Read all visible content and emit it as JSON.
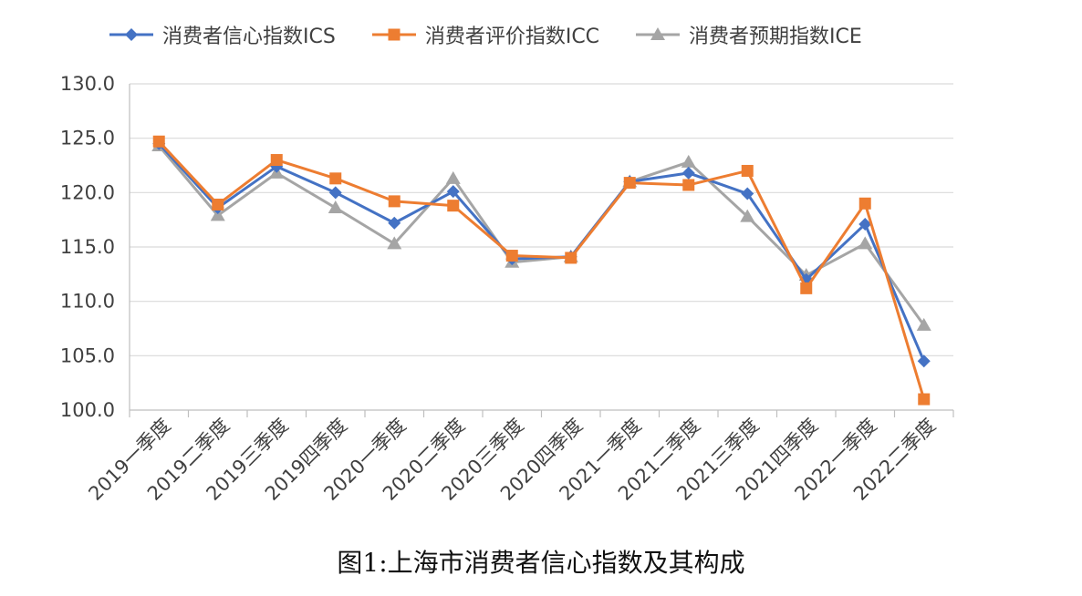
{
  "caption": "图1:上海市消费者信心指数及其构成",
  "chart_data": {
    "type": "line",
    "categories": [
      "2019一季度",
      "2019二季度",
      "2019三季度",
      "2019四季度",
      "2020一季度",
      "2020二季度",
      "2020三季度",
      "2020四季度",
      "2021一季度",
      "2021二季度",
      "2021三季度",
      "2021四季度",
      "2022一季度",
      "2022二季度"
    ],
    "ylim": [
      100,
      130
    ],
    "yticks": [
      "100.0",
      "105.0",
      "110.0",
      "115.0",
      "120.0",
      "125.0",
      "130.0"
    ],
    "grid": true,
    "legend_position": "top",
    "series": [
      {
        "name": "消费者信心指数ICS",
        "color": "#4472C4",
        "marker": "diamond",
        "values": [
          124.5,
          118.6,
          122.4,
          120.0,
          117.2,
          120.1,
          113.9,
          114.1,
          121.0,
          121.8,
          119.9,
          112.0,
          117.1,
          104.5
        ]
      },
      {
        "name": "消费者评价指数ICC",
        "color": "#ED7D31",
        "marker": "square",
        "values": [
          124.7,
          118.9,
          123.0,
          121.3,
          119.2,
          118.8,
          114.2,
          114.0,
          120.9,
          120.7,
          122.0,
          111.2,
          119.0,
          101.0
        ]
      },
      {
        "name": "消费者预期指数ICE",
        "color": "#A5A5A5",
        "marker": "triangle",
        "values": [
          124.3,
          117.9,
          121.8,
          118.6,
          115.3,
          121.3,
          113.6,
          114.1,
          121.0,
          122.8,
          117.8,
          112.4,
          115.3,
          107.8
        ]
      }
    ]
  }
}
